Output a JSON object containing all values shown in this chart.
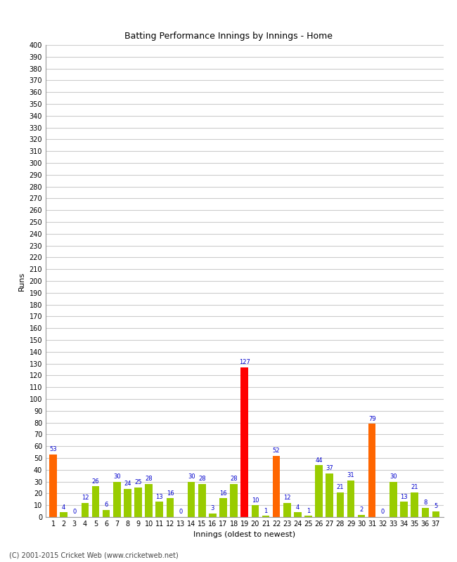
{
  "innings": [
    1,
    2,
    3,
    4,
    5,
    6,
    7,
    8,
    9,
    10,
    11,
    12,
    13,
    14,
    15,
    16,
    17,
    18,
    19,
    20,
    21,
    22,
    23,
    24,
    25,
    26,
    27,
    28,
    29,
    30,
    31,
    32,
    33,
    34,
    35,
    36,
    37
  ],
  "values": [
    53,
    4,
    0,
    12,
    26,
    6,
    30,
    24,
    25,
    28,
    13,
    16,
    0,
    30,
    28,
    3,
    16,
    28,
    127,
    10,
    1,
    52,
    12,
    4,
    1,
    44,
    37,
    21,
    31,
    2,
    79,
    0,
    30,
    13,
    21,
    8,
    5
  ],
  "colors": [
    "#ff6600",
    "#99cc00",
    "#99cc00",
    "#99cc00",
    "#99cc00",
    "#99cc00",
    "#99cc00",
    "#99cc00",
    "#99cc00",
    "#99cc00",
    "#99cc00",
    "#99cc00",
    "#99cc00",
    "#99cc00",
    "#99cc00",
    "#99cc00",
    "#99cc00",
    "#99cc00",
    "#ff0000",
    "#99cc00",
    "#99cc00",
    "#ff6600",
    "#99cc00",
    "#99cc00",
    "#99cc00",
    "#99cc00",
    "#99cc00",
    "#99cc00",
    "#99cc00",
    "#99cc00",
    "#ff6600",
    "#99cc00",
    "#99cc00",
    "#99cc00",
    "#99cc00",
    "#99cc00",
    "#99cc00"
  ],
  "title": "Batting Performance Innings by Innings - Home",
  "xlabel": "Innings (oldest to newest)",
  "ylabel": "Runs",
  "ylim": [
    0,
    400
  ],
  "yticks": [
    0,
    10,
    20,
    30,
    40,
    50,
    60,
    70,
    80,
    90,
    100,
    110,
    120,
    130,
    140,
    150,
    160,
    170,
    180,
    190,
    200,
    210,
    220,
    230,
    240,
    250,
    260,
    270,
    280,
    290,
    300,
    310,
    320,
    330,
    340,
    350,
    360,
    370,
    380,
    390,
    400
  ],
  "grid_color": "#cccccc",
  "bg_color": "#ffffff",
  "bar_label_color": "#0000cc",
  "footnote": "(C) 2001-2015 Cricket Web (www.cricketweb.net)",
  "title_fontsize": 9,
  "label_fontsize": 7,
  "axis_label_fontsize": 8
}
